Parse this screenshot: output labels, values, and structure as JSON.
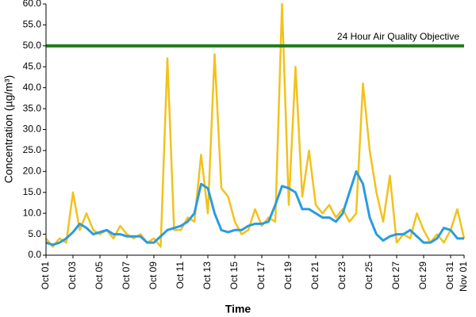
{
  "chart_data": {
    "type": "line",
    "xlabel": "Time",
    "ylabel": "Concentration (µg/m³)",
    "x": [
      0,
      0.5,
      1,
      1.5,
      2,
      2.5,
      3,
      3.5,
      4,
      4.5,
      5,
      5.5,
      6,
      6.5,
      7,
      7.5,
      8,
      8.5,
      9,
      9.5,
      10,
      10.5,
      11,
      11.5,
      12,
      12.5,
      13,
      13.5,
      14,
      14.5,
      15,
      15.5,
      16,
      16.5,
      17,
      17.5,
      18,
      18.5,
      19,
      19.5,
      20,
      20.5,
      21,
      21.5,
      22,
      22.5,
      23,
      23.5,
      24,
      24.5,
      25,
      25.5,
      26,
      26.5,
      27,
      27.5,
      28,
      28.5,
      29,
      29.5,
      30,
      30.5,
      31
    ],
    "series": [
      {
        "color": "#f2c21a",
        "width": 2.5,
        "values": [
          4,
          2,
          4,
          3,
          15,
          6,
          10,
          6,
          5,
          6,
          4,
          7,
          5,
          4,
          5,
          3,
          4,
          2,
          47,
          6,
          6,
          9,
          8,
          24,
          10,
          48,
          16,
          14,
          8,
          5,
          6,
          11,
          7,
          9,
          8,
          60,
          12,
          45,
          14,
          25,
          12,
          10,
          12,
          9,
          11,
          8,
          10,
          41,
          25,
          15,
          8,
          19,
          3,
          5,
          4,
          10,
          6,
          3,
          5,
          3,
          6,
          11,
          4
        ]
      },
      {
        "color": "#2b9be0",
        "width": 3,
        "values": [
          3,
          2.5,
          3,
          4,
          5.5,
          7.5,
          6.5,
          5,
          5.5,
          6,
          5,
          5,
          4.5,
          4.5,
          4.5,
          3,
          3,
          4.5,
          6,
          6.5,
          7,
          8,
          10,
          17,
          16,
          10,
          6,
          5.5,
          6,
          6,
          7,
          7.5,
          7.5,
          8,
          12,
          16.5,
          16,
          15,
          11,
          11,
          10,
          9,
          9,
          8,
          10,
          15,
          20,
          17,
          9,
          5,
          3.5,
          4.5,
          5,
          5,
          6,
          4.5,
          3,
          3,
          4,
          6.5,
          6,
          4,
          4
        ]
      }
    ],
    "reference_lines": [
      {
        "value": 50,
        "label": "24 Hour Air Quality Objective",
        "color": "#1e7d1e"
      }
    ],
    "xlim": [
      0,
      31
    ],
    "xticks": [
      {
        "value": 0,
        "label": "Oct 01"
      },
      {
        "value": 2,
        "label": "Oct 03"
      },
      {
        "value": 4,
        "label": "Oct 05"
      },
      {
        "value": 6,
        "label": "Oct 07"
      },
      {
        "value": 8,
        "label": "Oct 09"
      },
      {
        "value": 10,
        "label": "Oct 11"
      },
      {
        "value": 12,
        "label": "Oct 13"
      },
      {
        "value": 14,
        "label": "Oct 15"
      },
      {
        "value": 16,
        "label": "Oct 17"
      },
      {
        "value": 18,
        "label": "Oct 19"
      },
      {
        "value": 20,
        "label": "Oct 21"
      },
      {
        "value": 22,
        "label": "Oct 23"
      },
      {
        "value": 24,
        "label": "Oct 25"
      },
      {
        "value": 26,
        "label": "Oct 27"
      },
      {
        "value": 28,
        "label": "Oct 29"
      },
      {
        "value": 30,
        "label": "Oct 31"
      },
      {
        "value": 31,
        "label": "Nov 01"
      }
    ],
    "ylim": [
      0,
      60
    ],
    "yticks": [
      {
        "value": 0,
        "label": "0.0"
      },
      {
        "value": 5,
        "label": "5.0"
      },
      {
        "value": 10,
        "label": "10.0"
      },
      {
        "value": 15,
        "label": "15.0"
      },
      {
        "value": 20,
        "label": "20.0"
      },
      {
        "value": 25,
        "label": "25.0"
      },
      {
        "value": 30,
        "label": "30.0"
      },
      {
        "value": 35,
        "label": "35.0"
      },
      {
        "value": 40,
        "label": "40.0"
      },
      {
        "value": 45,
        "label": "45.0"
      },
      {
        "value": 50,
        "label": "50.0"
      },
      {
        "value": 55,
        "label": "55.0"
      },
      {
        "value": 60,
        "label": "60.0"
      }
    ],
    "grid": false
  }
}
